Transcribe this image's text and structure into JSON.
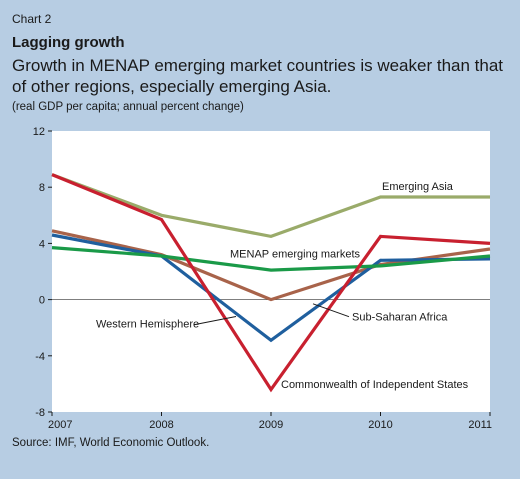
{
  "header": {
    "chart_number": "Chart 2",
    "title": "Lagging growth",
    "subtitle": "Growth in MENAP emerging market countries is weaker than that of other regions, especially emerging Asia.",
    "units": "(real GDP per capita; annual percent change)"
  },
  "source": "Source: IMF, World Economic Outlook.",
  "colors": {
    "background": "#b7cde3",
    "plot_background": "#ffffff",
    "emerging_asia": "#9aab6a",
    "menap": "#1a9a48",
    "cis": "#c8202f",
    "western_hemisphere": "#1f5f9e",
    "sub_saharan_africa": "#a8634a"
  },
  "chart_data": {
    "type": "line",
    "title": "Lagging growth",
    "subtitle": "Growth in MENAP emerging market countries is weaker than that of other regions, especially emerging Asia.",
    "ylabel": "(real GDP per capita; annual percent change)",
    "x": [
      "2007",
      "2008",
      "2009",
      "2010",
      "2011"
    ],
    "ylim": [
      -8,
      12
    ],
    "yticks": [
      "12",
      "8",
      "4",
      "0",
      "-4",
      "-8"
    ],
    "grid": "horizontal zero line only",
    "legend": "none (direct labels)",
    "series": [
      {
        "name": "Emerging Asia",
        "values": [
          8.9,
          6.0,
          4.5,
          7.3,
          7.3
        ]
      },
      {
        "name": "MENAP emerging markets",
        "values": [
          3.7,
          3.1,
          2.1,
          2.4,
          3.1
        ]
      },
      {
        "name": "Commonwealth of Independent States",
        "values": [
          8.9,
          5.7,
          -6.4,
          4.5,
          4.0
        ]
      },
      {
        "name": "Western Hemisphere",
        "values": [
          4.6,
          3.1,
          -2.9,
          2.8,
          2.9
        ]
      },
      {
        "name": "Sub-Saharan Africa",
        "values": [
          4.9,
          3.2,
          0.0,
          2.5,
          3.6
        ]
      }
    ]
  }
}
